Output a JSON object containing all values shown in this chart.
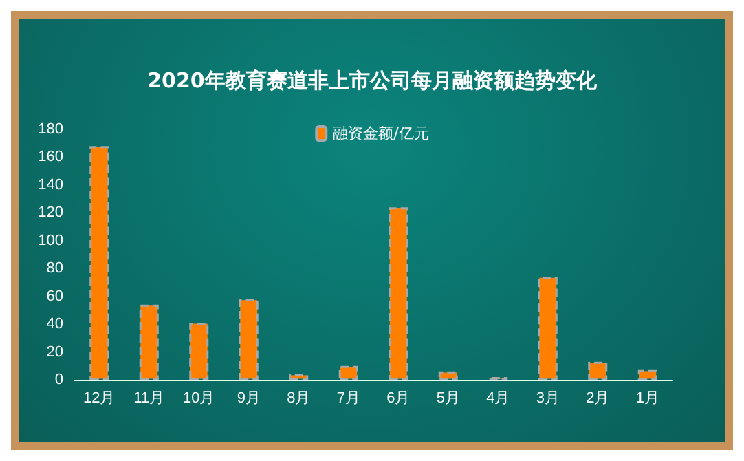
{
  "chart_data": {
    "type": "bar",
    "title": "2020年教育赛道非上市公司每月融资额趋势变化",
    "categories": [
      "12月",
      "11月",
      "10月",
      "9月",
      "8月",
      "7月",
      "6月",
      "5月",
      "4月",
      "3月",
      "2月",
      "1月"
    ],
    "series": [
      {
        "name": "融资金额/亿元",
        "color": "#ff7f00",
        "values": [
          168,
          54,
          41,
          58,
          4,
          10,
          124,
          6,
          2,
          74,
          13,
          7
        ]
      }
    ],
    "ylim": [
      0,
      180
    ],
    "yticks": [
      0,
      20,
      40,
      60,
      80,
      100,
      120,
      140,
      160,
      180
    ],
    "grid": false,
    "legend": "top"
  }
}
